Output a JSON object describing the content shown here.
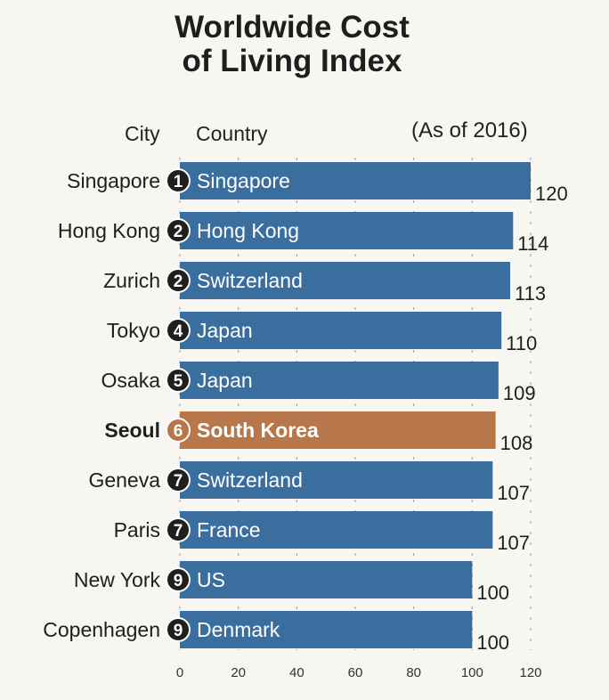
{
  "chart_data": {
    "type": "bar",
    "orientation": "horizontal",
    "title_lines": [
      "Worldwide Cost",
      "of Living Index"
    ],
    "column_headers": {
      "city": "City",
      "country": "Country"
    },
    "note": "(As of 2016)",
    "xlim": [
      0,
      120
    ],
    "x_ticks": [
      "0",
      "20",
      "40",
      "60",
      "80",
      "100",
      "120"
    ],
    "grid": "vertical dashed",
    "bars": [
      {
        "city": "Singapore",
        "rank": "1",
        "country": "Singapore",
        "value": 120
      },
      {
        "city": "Hong Kong",
        "rank": "2",
        "country": "Hong Kong",
        "value": 114
      },
      {
        "city": "Zurich",
        "rank": "2",
        "country": "Switzerland",
        "value": 113
      },
      {
        "city": "Tokyo",
        "rank": "4",
        "country": "Japan",
        "value": 110
      },
      {
        "city": "Osaka",
        "rank": "5",
        "country": "Japan",
        "value": 109
      },
      {
        "city": "Seoul",
        "rank": "6",
        "country": "South Korea",
        "value": 108,
        "highlight": true
      },
      {
        "city": "Geneva",
        "rank": "7",
        "country": "Switzerland",
        "value": 107
      },
      {
        "city": "Paris",
        "rank": "7",
        "country": "France",
        "value": 107
      },
      {
        "city": "New York",
        "rank": "9",
        "country": "US",
        "value": 100
      },
      {
        "city": "Copenhagen",
        "rank": "9",
        "country": "Denmark",
        "value": 100
      }
    ],
    "colors": {
      "bar": "#3a6e9f",
      "highlight": "#b8774a",
      "rank_badge": "#1f1f1f",
      "grid": "#9a9a9a"
    }
  }
}
